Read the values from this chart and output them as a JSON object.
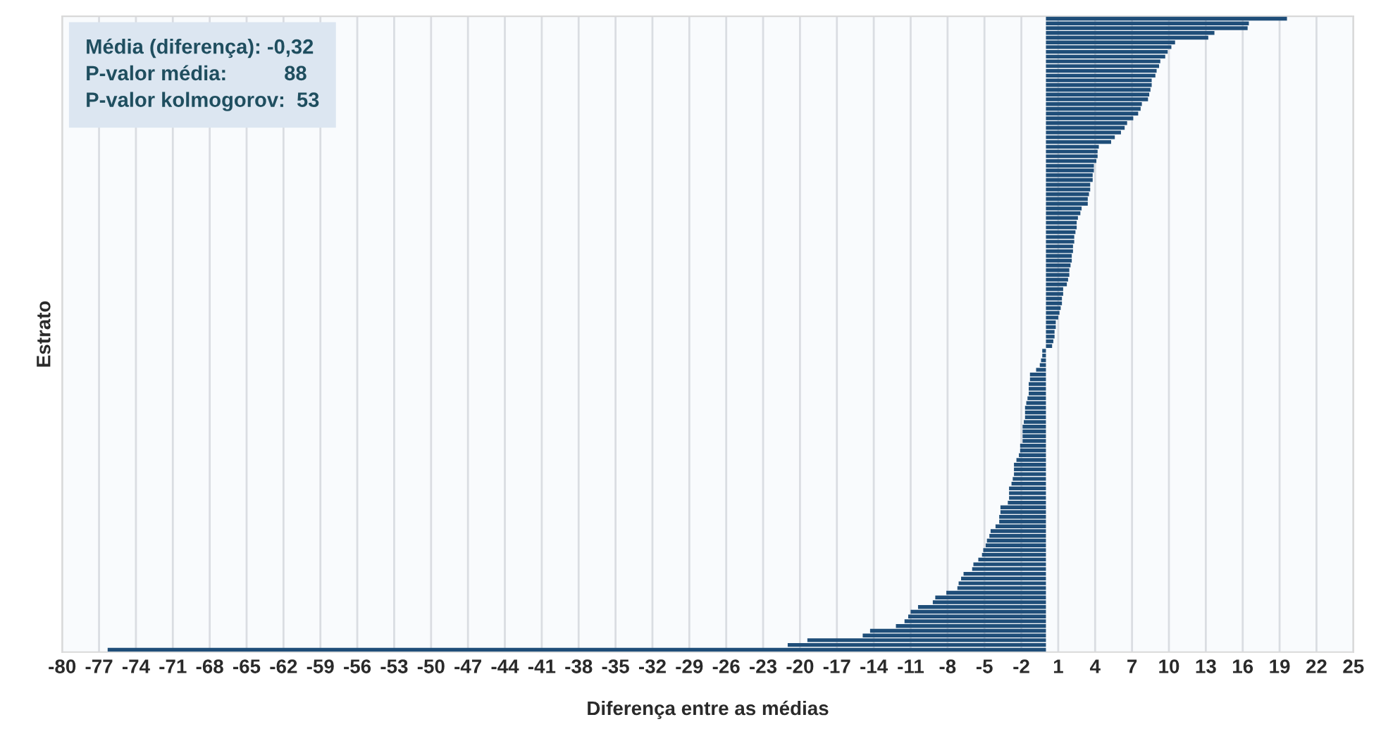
{
  "chart_data": {
    "type": "bar",
    "orientation": "horizontal",
    "xlabel": "Diferença entre as médias",
    "ylabel": "Estrato",
    "annotations": [
      "Média (diferença): -0,32",
      "P-valor média:          88",
      "P-valor kolmogorov:  53"
    ],
    "categories": [
      null,
      null,
      null,
      null,
      null,
      null,
      null,
      null,
      null,
      null,
      null,
      null,
      null,
      null,
      null,
      null,
      null,
      null,
      null,
      null,
      null,
      null,
      null,
      null,
      null,
      null,
      null,
      null,
      null,
      null,
      null,
      null,
      null,
      null,
      null,
      null,
      null,
      null,
      null,
      null,
      null,
      null,
      null,
      null,
      null,
      null,
      null,
      null,
      null,
      null,
      null,
      null,
      null,
      null,
      null,
      null,
      null,
      null,
      null,
      null,
      null,
      null,
      null,
      null,
      null,
      null,
      null,
      null,
      null,
      null,
      null,
      null,
      null,
      null,
      null,
      null,
      null,
      null,
      null,
      null,
      null,
      null,
      null,
      null,
      null,
      null,
      null,
      null,
      null,
      null,
      null,
      null,
      null,
      null,
      null,
      null,
      null,
      null,
      null,
      null,
      null,
      null,
      null,
      null,
      null,
      null,
      null,
      null,
      null,
      null,
      null,
      null,
      null,
      null,
      null,
      null,
      null,
      null,
      null,
      null,
      null,
      null,
      null,
      null,
      null,
      null,
      null,
      null,
      null,
      null,
      null,
      null,
      null,
      null
    ],
    "values": [
      19.6,
      16.5,
      16.4,
      13.7,
      13.2,
      10.5,
      10.2,
      9.9,
      9.7,
      9.3,
      9.2,
      9.0,
      8.9,
      8.6,
      8.6,
      8.5,
      8.4,
      8.3,
      7.8,
      7.7,
      7.5,
      7.1,
      6.6,
      6.4,
      6.1,
      5.6,
      5.3,
      4.3,
      4.2,
      4.2,
      4.1,
      3.9,
      3.9,
      3.8,
      3.8,
      3.6,
      3.6,
      3.5,
      3.4,
      3.4,
      2.9,
      2.8,
      2.6,
      2.5,
      2.5,
      2.4,
      2.3,
      2.3,
      2.2,
      2.2,
      2.1,
      2.1,
      2.0,
      1.9,
      1.9,
      1.8,
      1.7,
      1.4,
      1.4,
      1.3,
      1.3,
      1.2,
      1.1,
      1.0,
      0.8,
      0.8,
      0.7,
      0.7,
      0.6,
      0.5,
      -0.3,
      -0.3,
      -0.4,
      -0.5,
      -0.8,
      -1.3,
      -1.3,
      -1.4,
      -1.4,
      -1.4,
      -1.5,
      -1.6,
      -1.7,
      -1.7,
      -1.7,
      -1.8,
      -1.9,
      -1.9,
      -1.9,
      -1.9,
      -2.1,
      -2.1,
      -2.2,
      -2.4,
      -2.6,
      -2.6,
      -2.6,
      -2.7,
      -2.8,
      -3.0,
      -3.0,
      -3.0,
      -3.1,
      -3.7,
      -3.7,
      -3.8,
      -3.8,
      -4.1,
      -4.5,
      -4.6,
      -4.8,
      -4.9,
      -5.1,
      -5.2,
      -5.5,
      -5.9,
      -6.0,
      -6.7,
      -6.9,
      -7.1,
      -7.2,
      -8.1,
      -9.0,
      -9.2,
      -10.4,
      -11.0,
      -11.2,
      -11.5,
      -12.2,
      -14.3,
      -14.9,
      -19.4,
      -21.0,
      -76.3
    ],
    "color": "#1f4e79",
    "xlim": [
      -80,
      25
    ],
    "xticks": [
      -80,
      -77,
      -74,
      -71,
      -68,
      -65,
      -62,
      -59,
      -56,
      -53,
      -50,
      -47,
      -44,
      -41,
      -38,
      -35,
      -32,
      -29,
      -26,
      -23,
      -20,
      -17,
      -14,
      -11,
      -8,
      -5,
      -2,
      1,
      4,
      7,
      10,
      13,
      16,
      19,
      22,
      25
    ],
    "grid": "x",
    "tick_labels": "x"
  }
}
